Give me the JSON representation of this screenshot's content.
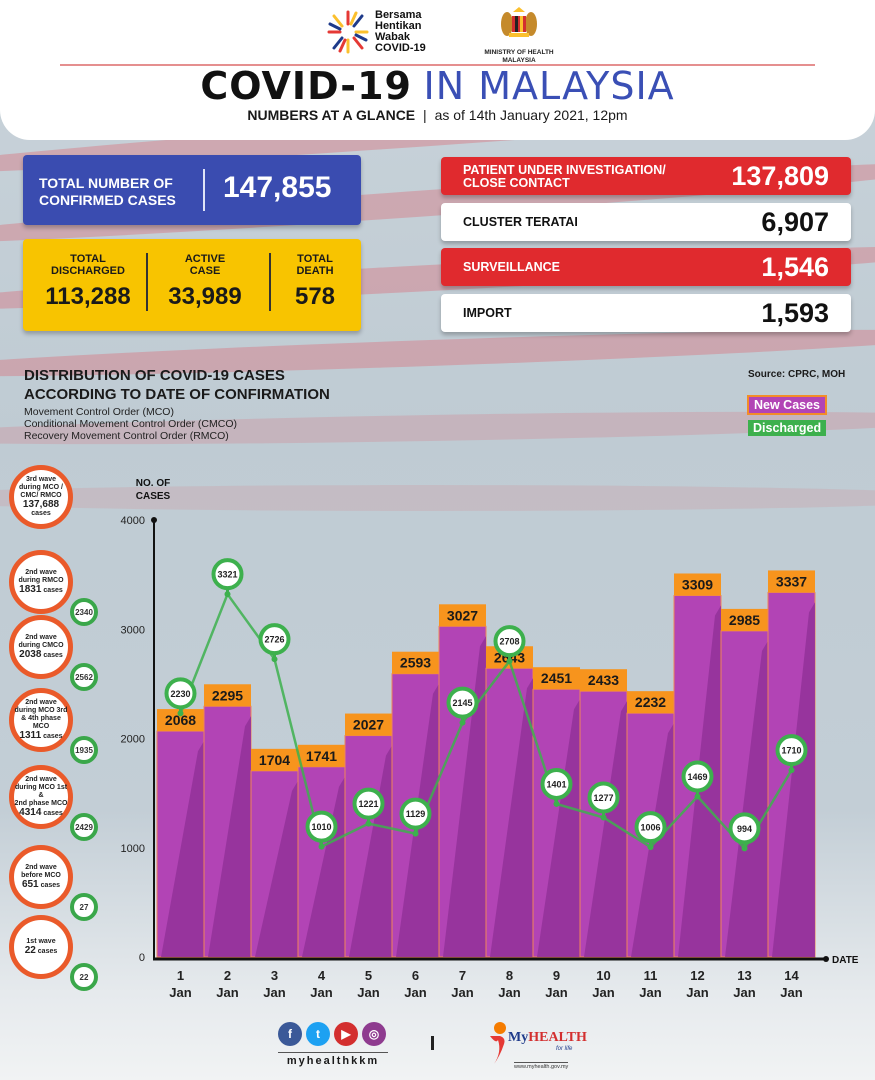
{
  "header": {
    "campaign_logo_lines": [
      "Bersama",
      "Hentikan",
      "Wabak",
      "COVID-19"
    ],
    "ministry_lines": [
      "MINISTRY OF HEALTH",
      "MALAYSIA"
    ],
    "title_bold": "COVID-19",
    "title_light": "IN MALAYSIA",
    "subtitle_bold": "NUMBERS AT A GLANCE",
    "subtitle_sep": "|",
    "subtitle_date": "as of 14th January 2021, 12pm"
  },
  "summary": {
    "confirmed": {
      "label_line1": "TOTAL NUMBER OF",
      "label_line2": "CONFIRMED CASES",
      "value": "147,855",
      "color": "#3a4cb0"
    },
    "discharged": {
      "label_line1": "TOTAL",
      "label_line2": "DISCHARGED",
      "value": "113,288"
    },
    "active": {
      "label_line1": "ACTIVE",
      "label_line2": "CASE",
      "value": "33,989"
    },
    "death": {
      "label_line1": "TOTAL",
      "label_line2": "DEATH",
      "value": "578"
    },
    "yellow_color": "#f8c400"
  },
  "categories": [
    {
      "label_line1": "PATIENT UNDER INVESTIGATION/",
      "label_line2": "CLOSE CONTACT",
      "value": "137,809",
      "style": "red"
    },
    {
      "label_line1": "CLUSTER TERATAI",
      "label_line2": "",
      "value": "6,907",
      "style": "white"
    },
    {
      "label_line1": "SURVEILLANCE",
      "label_line2": "",
      "value": "1,546",
      "style": "red"
    },
    {
      "label_line1": "IMPORT",
      "label_line2": "",
      "value": "1,593",
      "style": "white"
    }
  ],
  "distribution": {
    "title_line1": "DISTRIBUTION OF COVID-19 CASES",
    "title_line2": "ACCORDING TO DATE OF CONFIRMATION",
    "notes": [
      "Movement Control Order (MCO)",
      "Conditional Movement Control Order (CMCO)",
      "Recovery Movement Control Order (RMCO)"
    ],
    "source": "Source: CPRC, MOH",
    "legend_new": "New Cases",
    "legend_discharged": "Discharged"
  },
  "waves": [
    {
      "lines": [
        "3rd wave",
        "during MCO /",
        "CMC/ RMCO"
      ],
      "cases": "137,688",
      "suffix": "cases",
      "discharged": null
    },
    {
      "lines": [
        "2nd wave",
        "during RMCO"
      ],
      "cases": "1831",
      "suffix": "cases",
      "discharged": "2340"
    },
    {
      "lines": [
        "2nd wave",
        "during CMCO"
      ],
      "cases": "2038",
      "suffix": "cases",
      "discharged": "2562"
    },
    {
      "lines": [
        "2nd wave",
        "during MCO 3rd",
        "& 4th phase MCO"
      ],
      "cases": "1311",
      "suffix": "cases",
      "discharged": "1935"
    },
    {
      "lines": [
        "2nd wave",
        "during MCO 1st &",
        "2nd phase MCO"
      ],
      "cases": "4314",
      "suffix": "cases",
      "discharged": "2429"
    },
    {
      "lines": [
        "2nd wave",
        "before MCO"
      ],
      "cases": "651",
      "suffix": "cases",
      "discharged": "27"
    },
    {
      "lines": [
        "1st wave"
      ],
      "cases": "22",
      "suffix": "cases",
      "discharged": "22"
    }
  ],
  "chart_data": {
    "type": "bar",
    "title": "DISTRIBUTION OF COVID-19 CASES ACCORDING TO DATE OF CONFIRMATION",
    "ylabel_lines": [
      "NO. OF",
      "CASES"
    ],
    "xlabel": "DATE",
    "ylim": [
      0,
      4000
    ],
    "yticks": [
      0,
      1000,
      2000,
      3000,
      4000
    ],
    "categories": [
      [
        "1",
        "Jan"
      ],
      [
        "2",
        "Jan"
      ],
      [
        "3",
        "Jan"
      ],
      [
        "4",
        "Jan"
      ],
      [
        "5",
        "Jan"
      ],
      [
        "6",
        "Jan"
      ],
      [
        "7",
        "Jan"
      ],
      [
        "8",
        "Jan"
      ],
      [
        "9",
        "Jan"
      ],
      [
        "10",
        "Jan"
      ],
      [
        "11",
        "Jan"
      ],
      [
        "12",
        "Jan"
      ],
      [
        "13",
        "Jan"
      ],
      [
        "14",
        "Jan"
      ]
    ],
    "series": [
      {
        "name": "New Cases",
        "type": "bar",
        "color": "#b244b5",
        "label_color": "#f7941d",
        "values": [
          2068,
          2295,
          1704,
          1741,
          2027,
          2593,
          3027,
          2643,
          2451,
          2433,
          2232,
          3309,
          2985,
          3337
        ]
      },
      {
        "name": "Discharged",
        "type": "line",
        "color": "#3db04d",
        "values": [
          2230,
          3321,
          2726,
          1010,
          1221,
          1129,
          2145,
          2708,
          1401,
          1277,
          1006,
          1469,
          994,
          1710
        ]
      }
    ],
    "legend": "top-right",
    "grid": false
  },
  "footer": {
    "social_handle": "myhealthkkm",
    "social_icons": [
      "facebook-icon",
      "twitter-icon",
      "youtube-icon",
      "instagram-icon"
    ],
    "separator": "|",
    "brand_my": "My",
    "brand_health": "HEALTH",
    "brand_tagline": "for life",
    "url": "www.myhealth.gov.my"
  }
}
